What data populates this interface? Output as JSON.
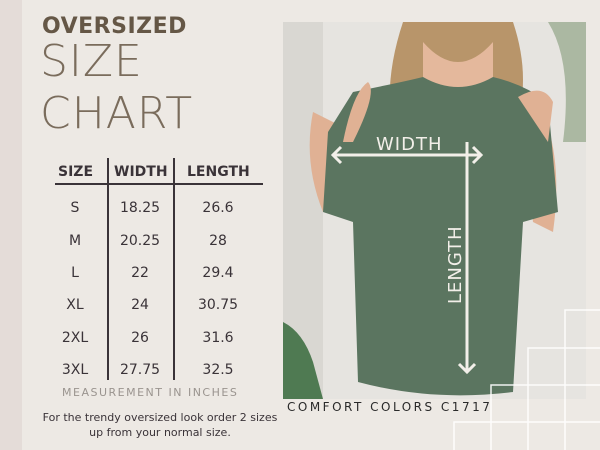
{
  "title": {
    "line1": "OVERSIZED",
    "line2": "SIZE",
    "line3": "CHART"
  },
  "table": {
    "headers": [
      "SIZE",
      "WIDTH",
      "LENGTH"
    ],
    "rows": [
      [
        "S",
        "18.25",
        "26.6"
      ],
      [
        "M",
        "20.25",
        "28"
      ],
      [
        "L",
        "22",
        "29.4"
      ],
      [
        "XL",
        "24",
        "30.75"
      ],
      [
        "2XL",
        "26",
        "31.6"
      ],
      [
        "3XL",
        "27.75",
        "32.5"
      ]
    ]
  },
  "measurement_note": "MEASUREMENT IN INCHES",
  "fit_note": "For the trendy oversized look order 2 sizes up from your normal size.",
  "photo": {
    "width_label": "WIDTH",
    "length_label": "LENGTH",
    "shirt_color": "#5b7560"
  },
  "brand": "COMFORT COLORS C1717"
}
